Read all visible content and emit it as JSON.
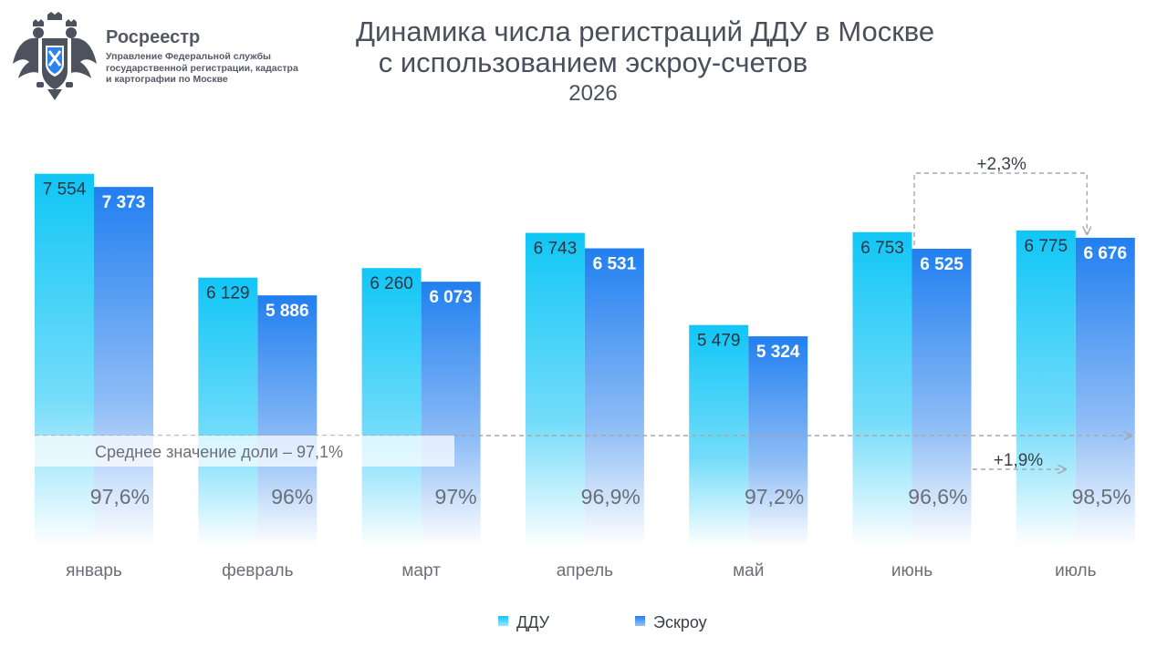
{
  "header": {
    "org_name": "Росреестр",
    "org_subtitle": "Управление Федеральной службы государственной регистрации, кадастра и картографии по Москве",
    "emblem_icon": "double-headed-eagle-emblem"
  },
  "chart_data": {
    "type": "bar",
    "title_line1": "Динамика числа регистраций ДДУ в Москве",
    "title_line2": "с использованием эскроу-счетов",
    "subtitle": "2026",
    "categories": [
      "январь",
      "февраль",
      "март",
      "апрель",
      "май",
      "июнь",
      "июль"
    ],
    "series": [
      {
        "name": "ДДУ",
        "values": [
          7554,
          6129,
          6260,
          6743,
          5479,
          6753,
          6775
        ],
        "labels": [
          "7 554",
          "6 129",
          "6 260",
          "6 743",
          "5 479",
          "6 753",
          "6 775"
        ],
        "color": "#17c3f5"
      },
      {
        "name": "Эскроу",
        "values": [
          7373,
          5886,
          6073,
          6531,
          5324,
          6525,
          6676
        ],
        "labels": [
          "7 373",
          "5 886",
          "6 073",
          "6 531",
          "5 324",
          "6 525",
          "6 676"
        ],
        "color": "#2a82ef"
      }
    ],
    "share": {
      "values": [
        97.6,
        96,
        97,
        96.9,
        97.2,
        96.6,
        98.5
      ],
      "labels": [
        "97,6%",
        "96%",
        "97%",
        "96,9%",
        "97,2%",
        "96,6%",
        "98,5%"
      ]
    },
    "average_share_label": "Среднее значение доли – 97,1%",
    "average_share_value": 97.1,
    "annotations": [
      {
        "text": "+2,3%",
        "from": "июнь",
        "to": "июль",
        "series": "Эскроу"
      },
      {
        "text": "+1,9%",
        "from": "июнь",
        "to": "июль",
        "series": "share"
      }
    ],
    "ylim": [
      0,
      8000
    ],
    "grid": false,
    "legend_position": "bottom-center"
  }
}
